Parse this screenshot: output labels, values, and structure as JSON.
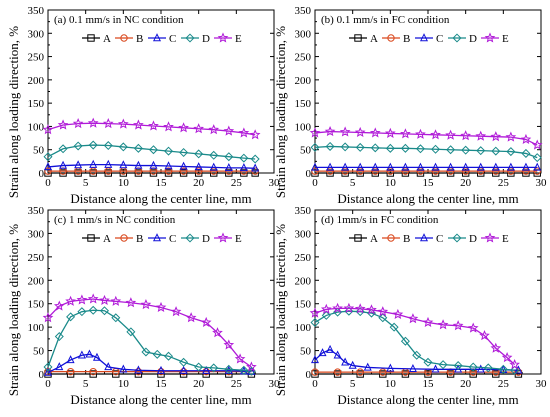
{
  "figure": {
    "ylabel": "Strain along loading direction, %",
    "xlabel": "Distance along the center line, mm"
  },
  "series_colors": {
    "A": "#000000",
    "B": "#d9471c",
    "C": "#1010d8",
    "D": "#1a8a8a",
    "E": "#b01ad8"
  },
  "chart_data": [
    {
      "type": "line",
      "title": "(a) 0.1 mm/s in NC condition",
      "xlabel": "Distance along the center line, mm",
      "ylabel": "Strain along loading direction, %",
      "xlim": [
        0,
        30
      ],
      "ylim": [
        0,
        350
      ],
      "xticks": [
        0,
        5,
        10,
        15,
        20,
        25,
        30
      ],
      "yticks": [
        0,
        50,
        100,
        150,
        200,
        250,
        300,
        350
      ],
      "legend_position": "top",
      "series": [
        {
          "name": "A",
          "x": [
            0,
            2,
            4,
            6,
            8,
            10,
            12,
            14,
            16,
            18,
            20,
            22,
            24,
            26,
            27.5
          ],
          "values": [
            0,
            0,
            0,
            0,
            0,
            0,
            0,
            0,
            0,
            0,
            0,
            0,
            0,
            0,
            0
          ]
        },
        {
          "name": "B",
          "x": [
            0,
            2,
            4,
            6,
            8,
            10,
            12,
            14,
            16,
            18,
            20,
            22,
            24,
            26,
            27.5
          ],
          "values": [
            4,
            4,
            4,
            4,
            4,
            4,
            4,
            4,
            4,
            4,
            4,
            4,
            4,
            4,
            4
          ]
        },
        {
          "name": "C",
          "x": [
            0,
            2,
            4,
            6,
            8,
            10,
            12,
            14,
            16,
            18,
            20,
            22,
            24,
            26,
            27.5
          ],
          "values": [
            13,
            16,
            17,
            18,
            18,
            17,
            16,
            16,
            15,
            14,
            13,
            12,
            11,
            11,
            10
          ]
        },
        {
          "name": "D",
          "x": [
            0,
            2,
            4,
            6,
            8,
            10,
            12,
            14,
            16,
            18,
            20,
            22,
            24,
            26,
            27.5
          ],
          "values": [
            35,
            52,
            58,
            60,
            59,
            56,
            53,
            50,
            47,
            44,
            41,
            38,
            35,
            32,
            30
          ]
        },
        {
          "name": "E",
          "x": [
            0,
            2,
            4,
            6,
            8,
            10,
            12,
            14,
            16,
            18,
            20,
            22,
            24,
            26,
            27.5
          ],
          "values": [
            93,
            103,
            106,
            107,
            106,
            105,
            103,
            101,
            99,
            97,
            95,
            93,
            90,
            86,
            82
          ]
        }
      ]
    },
    {
      "type": "line",
      "title": "(b) 0.1 mm/s in FC condition",
      "xlabel": "Distance along the center line, mm",
      "ylabel": "Strain along loading direction, %",
      "xlim": [
        0,
        30
      ],
      "ylim": [
        0,
        350
      ],
      "xticks": [
        0,
        5,
        10,
        15,
        20,
        25,
        30
      ],
      "yticks": [
        0,
        50,
        100,
        150,
        200,
        250,
        300,
        350
      ],
      "legend_position": "top",
      "series": [
        {
          "name": "A",
          "x": [
            0,
            2,
            4,
            6,
            8,
            10,
            12,
            14,
            16,
            18,
            20,
            22,
            24,
            26,
            28,
            29.5
          ],
          "values": [
            0,
            0,
            0,
            0,
            0,
            0,
            0,
            0,
            0,
            0,
            0,
            0,
            0,
            0,
            0,
            0
          ]
        },
        {
          "name": "B",
          "x": [
            0,
            2,
            4,
            6,
            8,
            10,
            12,
            14,
            16,
            18,
            20,
            22,
            24,
            26,
            28,
            29.5
          ],
          "values": [
            4,
            4,
            4,
            4,
            4,
            4,
            4,
            4,
            4,
            4,
            4,
            4,
            4,
            4,
            4,
            4
          ]
        },
        {
          "name": "C",
          "x": [
            0,
            2,
            4,
            6,
            8,
            10,
            12,
            14,
            16,
            18,
            20,
            22,
            24,
            26,
            28,
            29.5
          ],
          "values": [
            12,
            12,
            12,
            12,
            12,
            12,
            12,
            12,
            12,
            12,
            12,
            12,
            12,
            12,
            12,
            12
          ]
        },
        {
          "name": "D",
          "x": [
            0,
            2,
            4,
            6,
            8,
            10,
            12,
            14,
            16,
            18,
            20,
            22,
            24,
            26,
            28,
            29.5
          ],
          "values": [
            55,
            57,
            56,
            55,
            54,
            53,
            53,
            52,
            51,
            50,
            49,
            48,
            47,
            46,
            42,
            33
          ]
        },
        {
          "name": "E",
          "x": [
            0,
            2,
            4,
            6,
            8,
            10,
            12,
            14,
            16,
            18,
            20,
            22,
            24,
            26,
            28,
            29.5
          ],
          "values": [
            86,
            89,
            88,
            87,
            86,
            85,
            84,
            83,
            82,
            81,
            80,
            79,
            78,
            77,
            72,
            60
          ]
        }
      ]
    },
    {
      "type": "line",
      "title": "(c) 1 mm/s in NC condition",
      "xlabel": "Distance along the center line, mm",
      "ylabel": "Strain along loading direction, %",
      "xlim": [
        0,
        30
      ],
      "ylim": [
        0,
        350
      ],
      "xticks": [
        0,
        5,
        10,
        15,
        20,
        25,
        30
      ],
      "yticks": [
        0,
        50,
        100,
        150,
        200,
        250,
        300,
        350
      ],
      "legend_position": "top",
      "series": [
        {
          "name": "A",
          "x": [
            0,
            3,
            6,
            9,
            12,
            15,
            18,
            21,
            24,
            27
          ],
          "values": [
            0,
            0,
            0,
            0,
            0,
            0,
            0,
            0,
            0,
            0
          ]
        },
        {
          "name": "B",
          "x": [
            0,
            3,
            6,
            9,
            12,
            15,
            18,
            21,
            24,
            27
          ],
          "values": [
            5,
            5,
            5,
            5,
            5,
            5,
            5,
            5,
            5,
            5
          ]
        },
        {
          "name": "C",
          "x": [
            0,
            1.5,
            3,
            4.5,
            5.5,
            6.5,
            8,
            10,
            12,
            15,
            18,
            21,
            24,
            26,
            27
          ],
          "values": [
            3,
            15,
            30,
            40,
            42,
            35,
            15,
            10,
            8,
            7,
            7,
            7,
            7,
            6,
            5
          ]
        },
        {
          "name": "D",
          "x": [
            0,
            1.5,
            3,
            4.5,
            6,
            7.5,
            9,
            11,
            13,
            14.5,
            16,
            18,
            20,
            22,
            24,
            26,
            27
          ],
          "values": [
            15,
            80,
            122,
            133,
            136,
            135,
            120,
            90,
            47,
            42,
            38,
            25,
            15,
            13,
            10,
            8,
            6
          ]
        },
        {
          "name": "E",
          "x": [
            0,
            1.5,
            3,
            4.5,
            6,
            7.5,
            9,
            11,
            13,
            15,
            17,
            19,
            21,
            22.5,
            24,
            25.5,
            27
          ],
          "values": [
            120,
            145,
            155,
            158,
            160,
            157,
            155,
            152,
            148,
            142,
            133,
            120,
            110,
            88,
            62,
            32,
            15
          ]
        }
      ]
    },
    {
      "type": "line",
      "title": "(d) 1mm/s in FC condition",
      "xlabel": "Distance along the center line, mm",
      "ylabel": "Strain along loading direction, %",
      "xlim": [
        0,
        30
      ],
      "ylim": [
        0,
        350
      ],
      "xticks": [
        0,
        5,
        10,
        15,
        20,
        25,
        30
      ],
      "yticks": [
        0,
        50,
        100,
        150,
        200,
        250,
        300,
        350
      ],
      "legend_position": "top",
      "series": [
        {
          "name": "A",
          "x": [
            0,
            3,
            6,
            9,
            12,
            15,
            18,
            21,
            24,
            27
          ],
          "values": [
            0,
            0,
            0,
            0,
            0,
            0,
            0,
            0,
            0,
            0
          ]
        },
        {
          "name": "B",
          "x": [
            0,
            3,
            6,
            9,
            12,
            15,
            18,
            21,
            24,
            27
          ],
          "values": [
            4,
            4,
            4,
            4,
            4,
            4,
            4,
            4,
            4,
            4
          ]
        },
        {
          "name": "C",
          "x": [
            0,
            1,
            2,
            3,
            4,
            5,
            7,
            10,
            13,
            16,
            19,
            22,
            25,
            27
          ],
          "values": [
            30,
            45,
            52,
            40,
            25,
            18,
            14,
            12,
            11,
            10,
            10,
            10,
            9,
            8
          ]
        },
        {
          "name": "D",
          "x": [
            0,
            1.5,
            3,
            4.5,
            6,
            7.5,
            9,
            10.5,
            12,
            13.5,
            15,
            17,
            19,
            21,
            23,
            25,
            26.5
          ],
          "values": [
            110,
            125,
            132,
            134,
            133,
            130,
            120,
            100,
            70,
            40,
            25,
            20,
            18,
            15,
            13,
            10,
            8
          ]
        },
        {
          "name": "E",
          "x": [
            0,
            1.5,
            3,
            4.5,
            6,
            7.5,
            9,
            11,
            13,
            15,
            17,
            19,
            21,
            22.5,
            24,
            25.5,
            26.5
          ],
          "values": [
            130,
            138,
            140,
            140,
            139,
            137,
            133,
            127,
            118,
            110,
            105,
            103,
            98,
            82,
            55,
            35,
            20
          ]
        }
      ]
    }
  ]
}
